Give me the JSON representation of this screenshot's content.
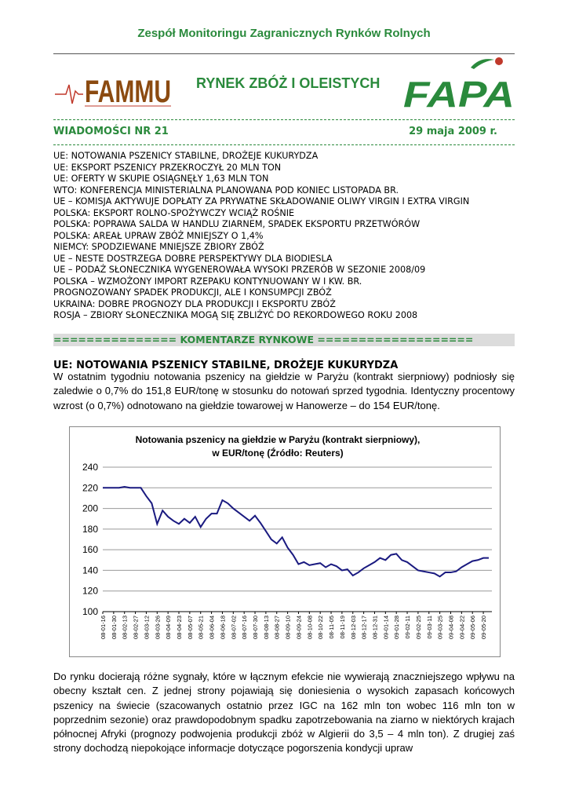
{
  "header": {
    "organization": "Zespół Monitoringu Zagranicznych Rynków Rolnych",
    "logo_left": "FAMMU",
    "title": "RYNEK ZBÓŻ I OLEISTYCH",
    "logo_right": "FAPA",
    "issue": "WIADOMOŚCI NR 21",
    "date": "29 maja 2009 r."
  },
  "headlines": [
    "UE: NOTOWANIA PSZENICY STABILNE, DROŻEJE KUKURYDZA",
    "UE: EKSPORT PSZENICY PRZEKROCZYŁ 20 MLN TON",
    "UE: OFERTY W SKUPIE OSIĄGNĘŁY 1,63 MLN TON",
    "WTO: KONFERENCJA MINISTERIALNA PLANOWANA POD KONIEC LISTOPADA BR.",
    "UE – KOMISJA AKTYWUJE DOPŁATY ZA PRYWATNE SKŁADOWANIE OLIWY VIRGIN I EXTRA VIRGIN",
    "POLSKA: EKSPORT ROLNO-SPOŻYWCZY WCIĄŻ ROŚNIE",
    "POLSKA: POPRAWA SALDA W HANDLU ZIARNEM, SPADEK EKSPORTU PRZETWÓRÓW",
    "POLSKA: AREAŁ UPRAW ZBÓŻ MNIEJSZY O 1,4%",
    "NIEMCY: SPODZIEWANE MNIEJSZE ZBIORY ZBÓŻ",
    "UE – NESTE DOSTRZEGA DOBRE PERSPEKTYWY DLA BIODIESLA",
    "UE – PODAŻ SŁONECZNIKA WYGENEROWAŁA WYSOKI PRZERÓB W SEZONIE 2008/09",
    "POLSKA – WZMOŻONY IMPORT RZEPAKU KONTYNUOWANY W I KW. BR.",
    "PROGNOZOWANY SPADEK PRODUKCJI, ALE I KONSUMPCJI ZBÓŻ",
    "UKRAINA: DOBRE PROGNOZY DLA PRODUKCJI I EKSPORTU ZBÓŻ",
    "ROSJA – ZBIORY SŁONECZNIKA MOGĄ SIĘ ZBLIŻYĆ DO REKORDOWEGO ROKU 2008"
  ],
  "section": "=============== KOMENTARZE RYNKOWE ===================",
  "article": {
    "heading": "UE: NOTOWANIA PSZENICY STABILNE, DROŻEJE KUKURYDZA",
    "paragraphs": [
      "W ostatnim tygodniu notowania pszenicy na giełdzie w Paryżu (kontrakt sierpniowy) podniosły się zaledwie o 0,7% do 151,8 EUR/tonę w stosunku do notowań sprzed tygodnia. Identyczny procentowy wzrost (o 0,7%) odnotowano na giełdzie towarowej w Hanowerze – do 154 EUR/tonę.",
      "Do rynku docierają różne sygnały, które w łącznym efekcie nie wywierają znaczniejszego wpływu na obecny kształt cen. Z jednej strony pojawiają się doniesienia o wysokich zapasach końcowych pszenicy na świecie (szacowanych ostatnio przez IGC na 162 mln ton wobec 116 mln ton w poprzednim sezonie) oraz prawdopodobnym spadku zapotrzebowania na ziarno w niektórych krajach północnej Afryki (prognozy podwojenia produkcji zbóż w Algierii do 3,5 – 4 mln ton). Z drugiej zaś strony dochodzą niepokojące informacje dotyczące pogorszenia kondycji upraw"
    ]
  },
  "chart_data": {
    "type": "line",
    "title": [
      "Notowania pszenicy na giełdzie w Paryżu (kontrakt sierpniowy),",
      "w EUR/tonę (Źródło: Reuters)"
    ],
    "categories": [
      "08-01-16",
      null,
      "08-01-30",
      null,
      "08-02-13",
      null,
      "08-02-27",
      null,
      "08-03-12",
      null,
      "08-03-26",
      null,
      "08-04-09",
      null,
      "08-04-23",
      null,
      "08-05-07",
      null,
      "08-05-21",
      null,
      "08-06-04",
      null,
      "08-06-18",
      null,
      "08-07-02",
      null,
      "08-07-16",
      null,
      "08-07-30",
      null,
      "08-08-13",
      null,
      "08-08-27",
      null,
      "08-09-10",
      null,
      "08-09-24",
      null,
      "08-10-08",
      null,
      "08-10-22",
      null,
      "08-11-05",
      null,
      "08-11-19",
      null,
      "08-12-03",
      null,
      "08-12-17",
      null,
      "08-12-31",
      null,
      "09-01-14",
      null,
      "09-01-28",
      null,
      "09-02-11",
      null,
      "09-02-25",
      null,
      "09-03-11",
      null,
      "09-03-25",
      null,
      "09-04-08",
      null,
      "09-04-22",
      null,
      "09-05-06",
      null,
      "09-05-20",
      null
    ],
    "series": [
      {
        "color": "#1a1a80",
        "values": [
          220,
          220,
          220,
          220,
          221,
          220,
          220,
          220,
          212,
          205,
          185,
          198,
          192,
          188,
          185,
          190,
          186,
          192,
          182,
          190,
          195,
          195,
          208,
          205,
          200,
          196,
          192,
          188,
          193,
          186,
          178,
          170,
          166,
          172,
          162,
          155,
          146,
          148,
          145,
          146,
          147,
          143,
          146,
          144,
          140,
          141,
          135,
          138,
          142,
          145,
          148,
          152,
          150,
          155,
          156,
          150,
          148,
          144,
          140,
          139,
          138,
          137,
          134,
          138,
          138,
          139,
          143,
          146,
          149,
          150,
          152,
          152
        ]
      }
    ],
    "ylim": [
      100,
      240
    ],
    "yticks": [
      100,
      120,
      140,
      160,
      180,
      200,
      220,
      240
    ],
    "grid": true
  }
}
